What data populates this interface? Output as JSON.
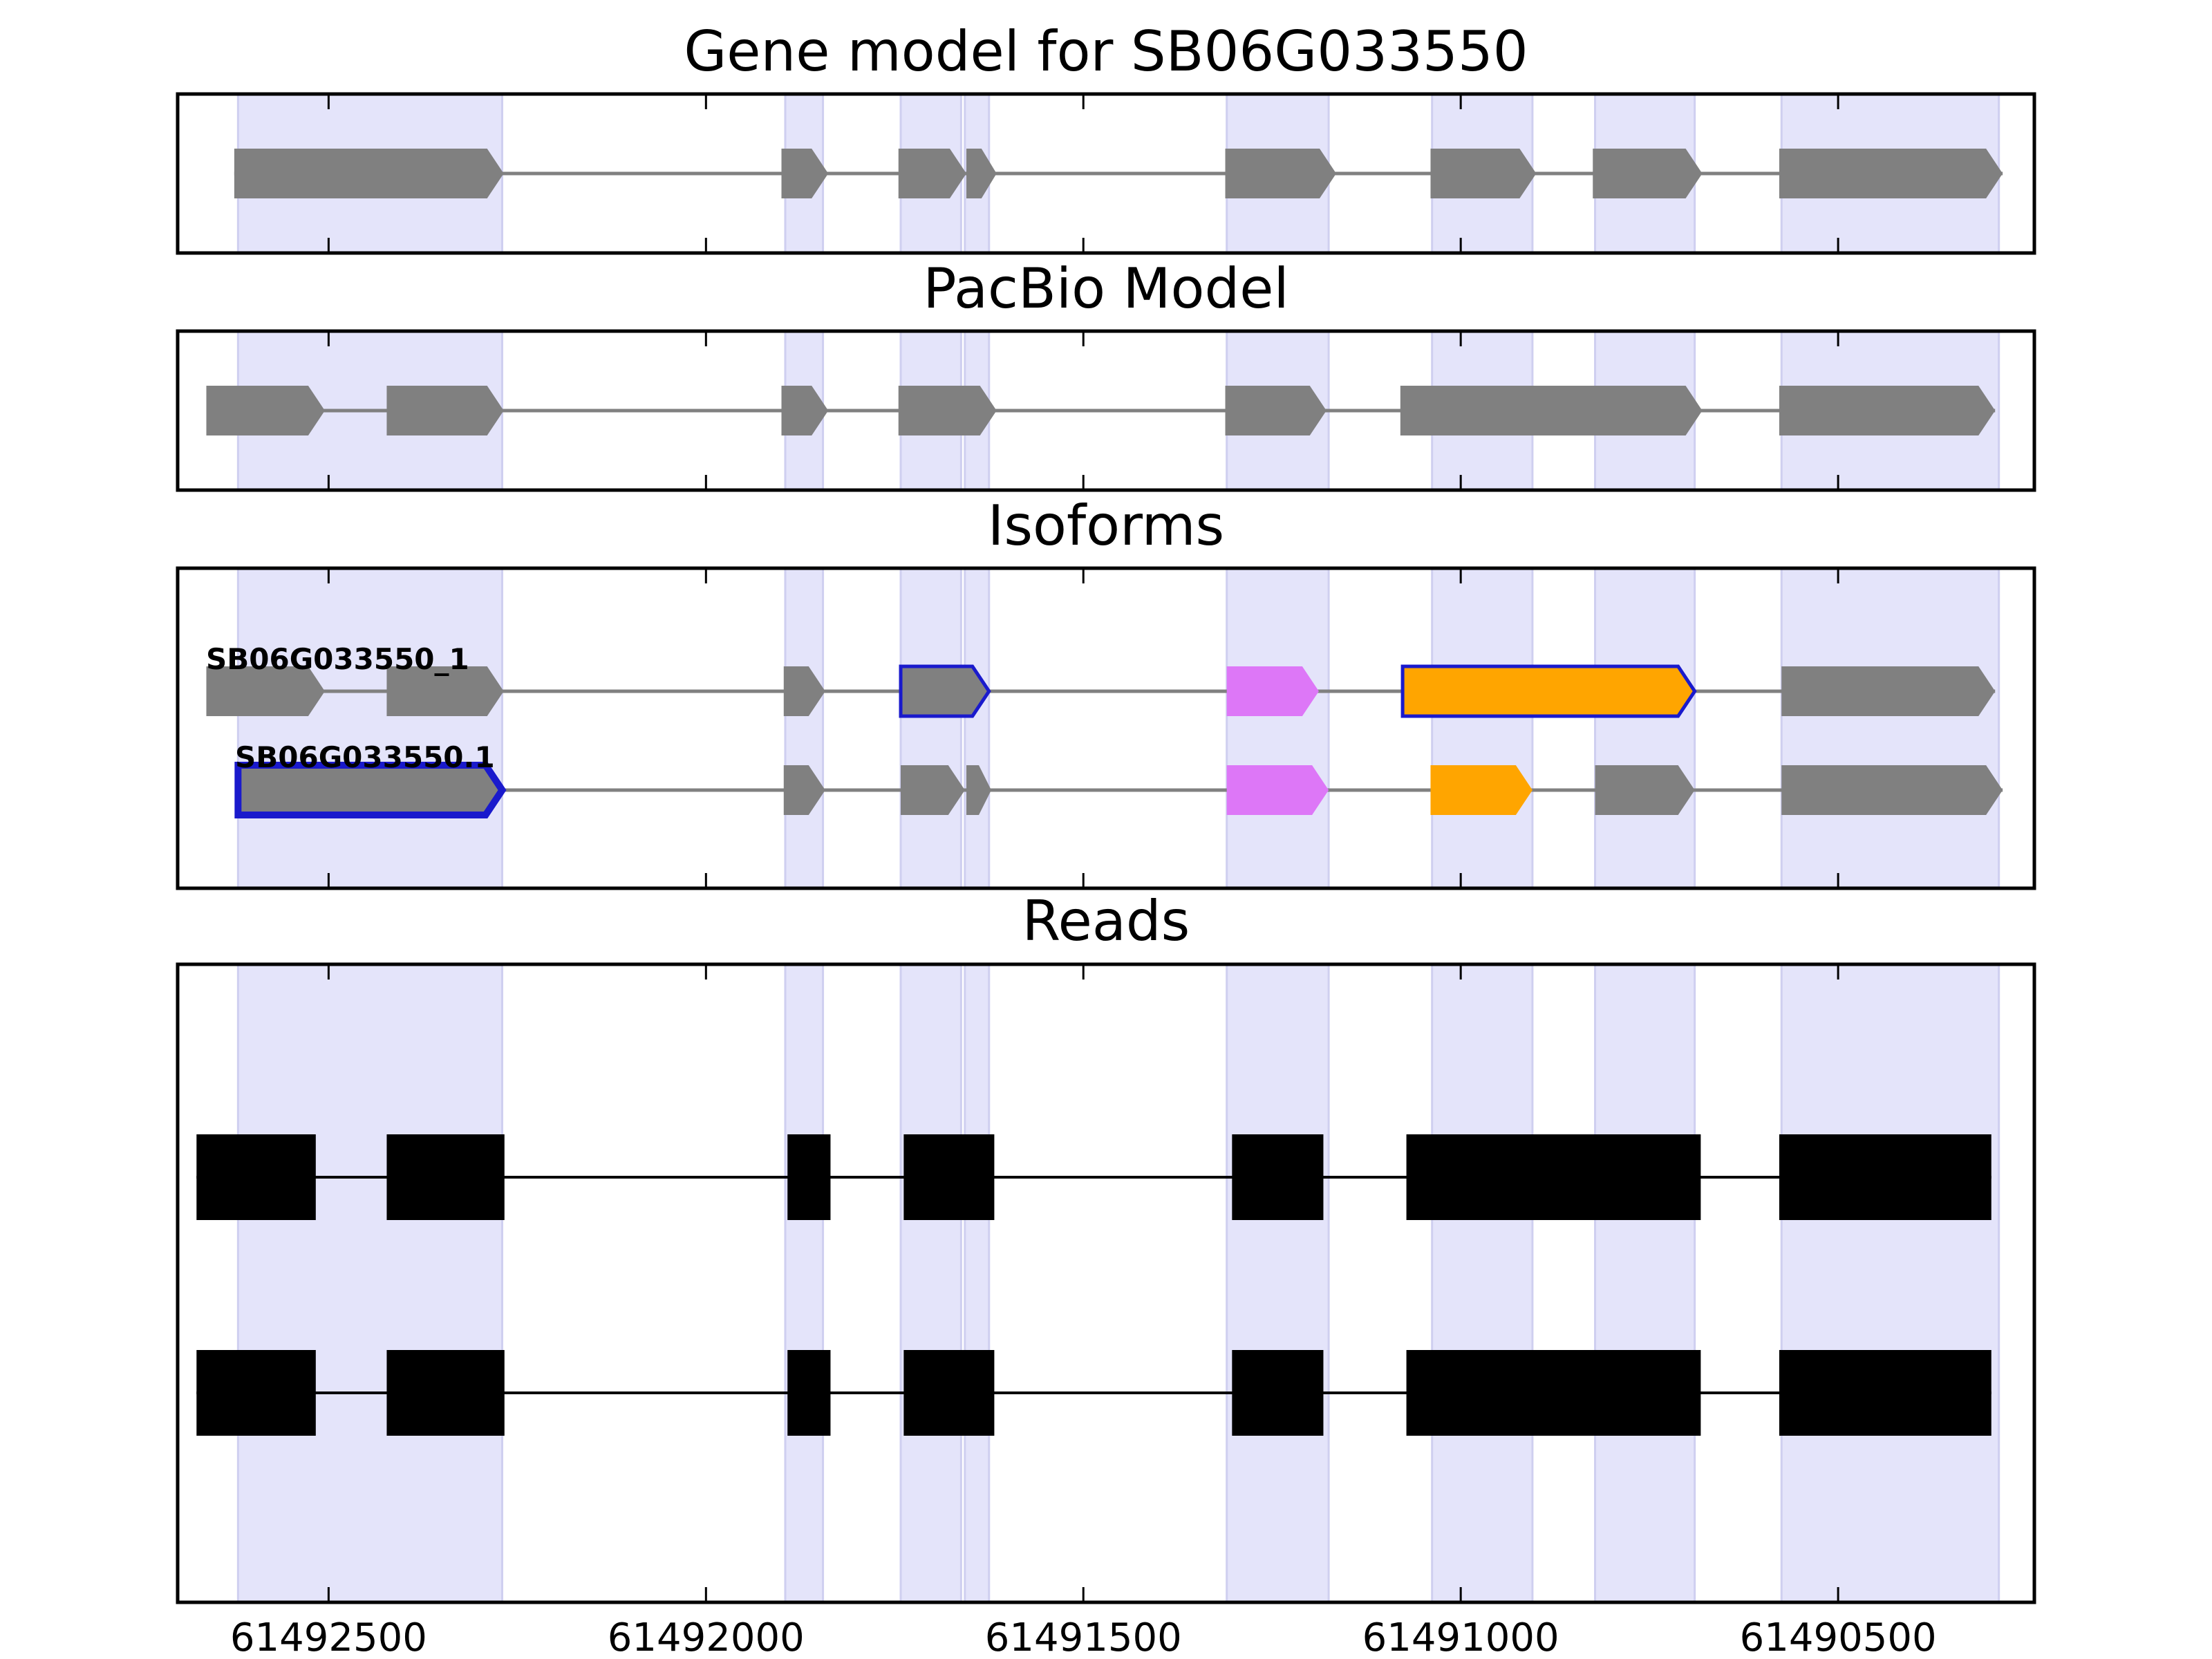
{
  "colors": {
    "exon": "#808080",
    "intron_line": "#808080",
    "highlight_band": "#e4e4fa",
    "highlight_band_edge": "#cfcff0",
    "selected_outline": "#1a1acc",
    "magenta_exon": "#dd77f7",
    "orange_exon": "#ffa500",
    "read_block": "#000000"
  },
  "x_axis": {
    "direction": "reversed",
    "domain": [
      61492700,
      61490240
    ],
    "tick_values": [
      61492500,
      61492000,
      61491500,
      61491000,
      61490500
    ],
    "tick_labels": [
      "61492500",
      "61492000",
      "61491500",
      "61491000",
      "61490500"
    ]
  },
  "highlight_bands": [
    [
      61492620,
      61492270
    ],
    [
      61491895,
      61491845
    ],
    [
      61491742,
      61491662
    ],
    [
      61491657,
      61491625
    ],
    [
      61491310,
      61491175
    ],
    [
      61491038,
      61490905
    ],
    [
      61490822,
      61490690
    ],
    [
      61490575,
      61490287
    ]
  ],
  "panels": [
    {
      "key": "gene",
      "title": "Gene model for SB06G033550",
      "tracks": [
        {
          "label": "",
          "exons": [
            {
              "start": 61492625,
              "end": 61492268,
              "fill": "exon",
              "outline": ""
            },
            {
              "start": 61491900,
              "end": 61491838,
              "fill": "exon",
              "outline": ""
            },
            {
              "start": 61491745,
              "end": 61491655,
              "fill": "exon",
              "outline": ""
            },
            {
              "start": 61491655,
              "end": 61491615,
              "fill": "exon",
              "outline": ""
            },
            {
              "start": 61491312,
              "end": 61491165,
              "fill": "exon",
              "outline": ""
            },
            {
              "start": 61491040,
              "end": 61490900,
              "fill": "exon",
              "outline": ""
            },
            {
              "start": 61490825,
              "end": 61490680,
              "fill": "exon",
              "outline": ""
            },
            {
              "start": 61490578,
              "end": 61490282,
              "fill": "exon",
              "outline": ""
            }
          ]
        }
      ]
    },
    {
      "key": "pacbio",
      "title": "PacBio Model",
      "tracks": [
        {
          "label": "",
          "exons": [
            {
              "start": 61492662,
              "end": 61492505,
              "fill": "exon",
              "outline": ""
            },
            {
              "start": 61492423,
              "end": 61492268,
              "fill": "exon",
              "outline": ""
            },
            {
              "start": 61491900,
              "end": 61491838,
              "fill": "exon",
              "outline": ""
            },
            {
              "start": 61491745,
              "end": 61491615,
              "fill": "exon",
              "outline": ""
            },
            {
              "start": 61491312,
              "end": 61491178,
              "fill": "exon",
              "outline": ""
            },
            {
              "start": 61491080,
              "end": 61490680,
              "fill": "exon",
              "outline": ""
            },
            {
              "start": 61490578,
              "end": 61490292,
              "fill": "exon",
              "outline": ""
            }
          ]
        }
      ]
    },
    {
      "key": "isoforms",
      "title": "Isoforms",
      "tracks": [
        {
          "label": "SB06G033550_1",
          "exons": [
            {
              "start": 61492662,
              "end": 61492505,
              "fill": "exon",
              "outline": ""
            },
            {
              "start": 61492423,
              "end": 61492268,
              "fill": "exon",
              "outline": ""
            },
            {
              "start": 61491897,
              "end": 61491842,
              "fill": "exon",
              "outline": ""
            },
            {
              "start": 61491742,
              "end": 61491625,
              "fill": "exon",
              "outline": "selected_outline"
            },
            {
              "start": 61491310,
              "end": 61491188,
              "fill": "magenta_exon",
              "outline": ""
            },
            {
              "start": 61491077,
              "end": 61490690,
              "fill": "orange_exon",
              "outline": "selected_outline"
            },
            {
              "start": 61490575,
              "end": 61490292,
              "fill": "exon",
              "outline": ""
            }
          ]
        },
        {
          "label": "SB06G033550.1",
          "exons": [
            {
              "start": 61492620,
              "end": 61492270,
              "fill": "exon",
              "outline": "selected_outline",
              "thick": true
            },
            {
              "start": 61491897,
              "end": 61491842,
              "fill": "exon",
              "outline": ""
            },
            {
              "start": 61491742,
              "end": 61491657,
              "fill": "exon",
              "outline": ""
            },
            {
              "start": 61491655,
              "end": 61491622,
              "fill": "exon",
              "outline": ""
            },
            {
              "start": 61491310,
              "end": 61491175,
              "fill": "magenta_exon",
              "outline": ""
            },
            {
              "start": 61491040,
              "end": 61490905,
              "fill": "orange_exon",
              "outline": ""
            },
            {
              "start": 61490822,
              "end": 61490690,
              "fill": "exon",
              "outline": ""
            },
            {
              "start": 61490575,
              "end": 61490282,
              "fill": "exon",
              "outline": ""
            }
          ]
        }
      ]
    },
    {
      "key": "reads",
      "title": "Reads",
      "reads": [
        [
          [
            61492675,
            61492517
          ],
          [
            61492423,
            61492267
          ],
          [
            61491892,
            61491835
          ],
          [
            61491738,
            61491618
          ],
          [
            61491303,
            61491182
          ],
          [
            61491072,
            61490682
          ],
          [
            61490578,
            61490297
          ]
        ],
        [
          [
            61492675,
            61492517
          ],
          [
            61492423,
            61492267
          ],
          [
            61491892,
            61491835
          ],
          [
            61491738,
            61491618
          ],
          [
            61491303,
            61491182
          ],
          [
            61491072,
            61490682
          ],
          [
            61490578,
            61490297
          ]
        ]
      ]
    }
  ]
}
